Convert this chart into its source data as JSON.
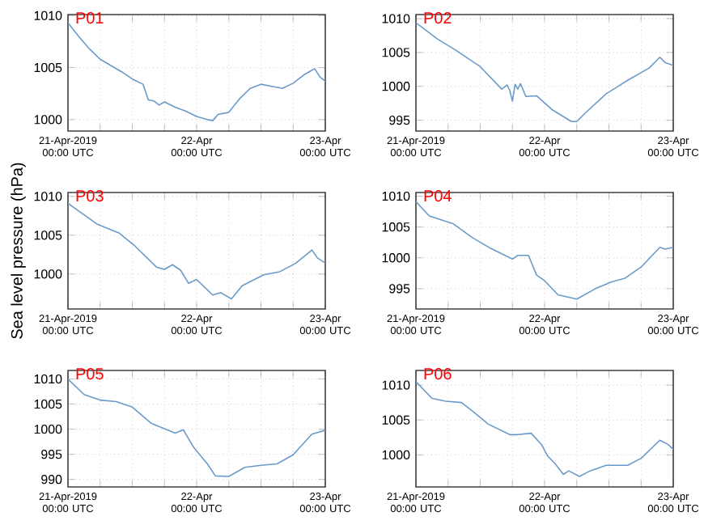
{
  "chart_data": [
    {
      "type": "line",
      "title": "P01",
      "color": "#6a9ac8",
      "grid": true,
      "xlim": [
        "2019-04-21T00:00",
        "2019-04-23T00:00"
      ],
      "ylim": [
        998.9,
        1010.1
      ],
      "yticks": [
        1000,
        1005,
        1010
      ],
      "xticks": [
        {
          "value": "2019-04-21T00:00",
          "label": "21-Apr-2019 00:00 UTC"
        },
        {
          "value": "2019-04-21T06:00",
          "label": null
        },
        {
          "value": "2019-04-21T12:00",
          "label": null
        },
        {
          "value": "2019-04-21T18:00",
          "label": null
        },
        {
          "value": "2019-04-22T00:00",
          "label": "22-Apr 00:00 UTC"
        },
        {
          "value": "2019-04-22T06:00",
          "label": null
        },
        {
          "value": "2019-04-22T12:00",
          "label": null
        },
        {
          "value": "2019-04-22T18:00",
          "label": null
        },
        {
          "value": "2019-04-23T00:00",
          "label": "23-Apr 00:00 UTC"
        }
      ],
      "x": [
        "2019-04-21T00:00",
        "2019-04-21T02:00",
        "2019-04-21T04:00",
        "2019-04-21T06:00",
        "2019-04-21T08:00",
        "2019-04-21T10:00",
        "2019-04-21T12:00",
        "2019-04-21T14:00",
        "2019-04-21T15:00",
        "2019-04-21T16:00",
        "2019-04-21T17:00",
        "2019-04-21T18:00",
        "2019-04-21T20:00",
        "2019-04-21T22:00",
        "2019-04-22T00:00",
        "2019-04-22T02:00",
        "2019-04-22T03:00",
        "2019-04-22T04:00",
        "2019-04-22T06:00",
        "2019-04-22T08:00",
        "2019-04-22T10:00",
        "2019-04-22T12:00",
        "2019-04-22T14:00",
        "2019-04-22T16:00",
        "2019-04-22T18:00",
        "2019-04-22T20:00",
        "2019-04-22T21:00",
        "2019-04-22T22:00",
        "2019-04-22T23:00",
        "2019-04-23T00:00"
      ],
      "values": [
        1009.3,
        1008.0,
        1006.8,
        1005.8,
        1005.2,
        1004.6,
        1003.9,
        1003.4,
        1001.9,
        1001.8,
        1001.4,
        1001.7,
        1001.2,
        1000.8,
        1000.3,
        1000.0,
        999.9,
        1000.5,
        1000.7,
        1002.0,
        1003.0,
        1003.4,
        1003.2,
        1003.0,
        1003.5,
        1004.3,
        1004.6,
        1004.9,
        1004.1,
        1003.7
      ]
    },
    {
      "type": "line",
      "title": "P02",
      "color": "#6a9ac8",
      "grid": true,
      "xlim": [
        "2019-04-21T00:00",
        "2019-04-23T00:00"
      ],
      "ylim": [
        993.4,
        1010.6
      ],
      "yticks": [
        995,
        1000,
        1005,
        1010
      ],
      "xticks": [
        {
          "value": "2019-04-21T00:00",
          "label": "21-Apr-2019 00:00 UTC"
        },
        {
          "value": "2019-04-21T06:00",
          "label": null
        },
        {
          "value": "2019-04-21T12:00",
          "label": null
        },
        {
          "value": "2019-04-21T18:00",
          "label": null
        },
        {
          "value": "2019-04-22T00:00",
          "label": "22-Apr 00:00 UTC"
        },
        {
          "value": "2019-04-22T06:00",
          "label": null
        },
        {
          "value": "2019-04-22T12:00",
          "label": null
        },
        {
          "value": "2019-04-22T18:00",
          "label": null
        },
        {
          "value": "2019-04-23T00:00",
          "label": "23-Apr 00:00 UTC"
        }
      ],
      "x": [
        "2019-04-21T00:00",
        "2019-04-21T04:00",
        "2019-04-21T07:30",
        "2019-04-21T12:00",
        "2019-04-21T16:00",
        "2019-04-21T17:00",
        "2019-04-21T17:30",
        "2019-04-21T18:00",
        "2019-04-21T18:30",
        "2019-04-21T19:00",
        "2019-04-21T19:30",
        "2019-04-21T20:30",
        "2019-04-21T22:30",
        "2019-04-22T01:30",
        "2019-04-22T05:00",
        "2019-04-22T06:00",
        "2019-04-22T07:30",
        "2019-04-22T11:30",
        "2019-04-22T15:30",
        "2019-04-22T19:30",
        "2019-04-22T21:30",
        "2019-04-22T22:30",
        "2019-04-23T00:00"
      ],
      "values": [
        1009.4,
        1007.0,
        1005.3,
        1002.9,
        999.6,
        1000.2,
        999.4,
        997.8,
        1000.3,
        999.6,
        1000.4,
        998.5,
        998.6,
        996.5,
        994.8,
        994.8,
        996.0,
        998.9,
        1000.9,
        1002.7,
        1004.3,
        1003.5,
        1003.1
      ]
    },
    {
      "type": "line",
      "title": "P03",
      "ylabel": "Sea level pressure (hPa)",
      "color": "#6a9ac8",
      "grid": true,
      "xlim": [
        "2019-04-21T00:00",
        "2019-04-23T00:00"
      ],
      "ylim": [
        995.5,
        1010.5
      ],
      "yticks": [
        1000,
        1005,
        1010
      ],
      "xticks": [
        {
          "value": "2019-04-21T00:00",
          "label": "21-Apr-2019 00:00 UTC"
        },
        {
          "value": "2019-04-21T06:00",
          "label": null
        },
        {
          "value": "2019-04-21T12:00",
          "label": null
        },
        {
          "value": "2019-04-21T18:00",
          "label": null
        },
        {
          "value": "2019-04-22T00:00",
          "label": "22-Apr 00:00 UTC"
        },
        {
          "value": "2019-04-22T06:00",
          "label": null
        },
        {
          "value": "2019-04-22T12:00",
          "label": null
        },
        {
          "value": "2019-04-22T18:00",
          "label": null
        },
        {
          "value": "2019-04-23T00:00",
          "label": "23-Apr 00:00 UTC"
        }
      ],
      "x": [
        "2019-04-21T00:00",
        "2019-04-21T05:30",
        "2019-04-21T09:30",
        "2019-04-21T12:30",
        "2019-04-21T16:30",
        "2019-04-21T18:00",
        "2019-04-21T19:30",
        "2019-04-21T21:00",
        "2019-04-21T22:30",
        "2019-04-22T00:00",
        "2019-04-22T03:00",
        "2019-04-22T04:30",
        "2019-04-22T06:30",
        "2019-04-22T08:30",
        "2019-04-22T12:30",
        "2019-04-22T15:30",
        "2019-04-22T18:30",
        "2019-04-22T21:30",
        "2019-04-22T22:30",
        "2019-04-23T00:00"
      ],
      "values": [
        1009.1,
        1006.4,
        1005.3,
        1003.6,
        1000.9,
        1000.6,
        1001.2,
        1000.5,
        998.8,
        999.3,
        997.3,
        997.6,
        996.8,
        998.5,
        999.9,
        1000.3,
        1001.4,
        1003.1,
        1002.1,
        1001.4
      ]
    },
    {
      "type": "line",
      "title": "P04",
      "color": "#6a9ac8",
      "grid": true,
      "xlim": [
        "2019-04-21T00:00",
        "2019-04-23T00:00"
      ],
      "ylim": [
        991.7,
        1010.6
      ],
      "yticks": [
        995,
        1000,
        1005,
        1010
      ],
      "xticks": [
        {
          "value": "2019-04-21T00:00",
          "label": "21-Apr-2019 00:00 UTC"
        },
        {
          "value": "2019-04-21T06:00",
          "label": null
        },
        {
          "value": "2019-04-21T12:00",
          "label": null
        },
        {
          "value": "2019-04-21T18:00",
          "label": null
        },
        {
          "value": "2019-04-22T00:00",
          "label": "22-Apr 00:00 UTC"
        },
        {
          "value": "2019-04-22T06:00",
          "label": null
        },
        {
          "value": "2019-04-22T12:00",
          "label": null
        },
        {
          "value": "2019-04-22T18:00",
          "label": null
        },
        {
          "value": "2019-04-23T00:00",
          "label": "23-Apr 00:00 UTC"
        }
      ],
      "x": [
        "2019-04-21T00:00",
        "2019-04-21T02:30",
        "2019-04-21T07:00",
        "2019-04-21T10:30",
        "2019-04-21T14:00",
        "2019-04-21T18:00",
        "2019-04-21T19:00",
        "2019-04-21T21:00",
        "2019-04-21T22:30",
        "2019-04-22T00:00",
        "2019-04-22T02:30",
        "2019-04-22T06:00",
        "2019-04-22T09:30",
        "2019-04-22T12:30",
        "2019-04-22T15:00",
        "2019-04-22T18:00",
        "2019-04-22T21:30",
        "2019-04-22T22:30",
        "2019-04-23T00:00"
      ],
      "values": [
        1009.1,
        1006.8,
        1005.5,
        1003.3,
        1001.5,
        999.8,
        1000.4,
        1000.4,
        997.2,
        996.3,
        994.0,
        993.3,
        995.0,
        996.1,
        996.7,
        998.5,
        1001.7,
        1001.4,
        1001.7
      ]
    },
    {
      "type": "line",
      "title": "P05",
      "color": "#6a9ac8",
      "grid": true,
      "xlim": [
        "2019-04-21T00:00",
        "2019-04-23T00:00"
      ],
      "ylim": [
        988.5,
        1011.7
      ],
      "yticks": [
        990,
        995,
        1000,
        1005,
        1010
      ],
      "xticks": [
        {
          "value": "2019-04-21T00:00",
          "label": "21-Apr-2019 00:00 UTC"
        },
        {
          "value": "2019-04-21T06:00",
          "label": null
        },
        {
          "value": "2019-04-21T12:00",
          "label": null
        },
        {
          "value": "2019-04-21T18:00",
          "label": null
        },
        {
          "value": "2019-04-22T00:00",
          "label": "22-Apr 00:00 UTC"
        },
        {
          "value": "2019-04-22T06:00",
          "label": null
        },
        {
          "value": "2019-04-22T12:00",
          "label": null
        },
        {
          "value": "2019-04-22T18:00",
          "label": null
        },
        {
          "value": "2019-04-23T00:00",
          "label": "23-Apr 00:00 UTC"
        }
      ],
      "x": [
        "2019-04-21T00:00",
        "2019-04-21T03:00",
        "2019-04-21T06:00",
        "2019-04-21T09:00",
        "2019-04-21T12:00",
        "2019-04-21T15:30",
        "2019-04-21T20:00",
        "2019-04-21T21:30",
        "2019-04-21T23:30",
        "2019-04-22T02:00",
        "2019-04-22T03:30",
        "2019-04-22T06:00",
        "2019-04-22T09:00",
        "2019-04-22T12:00",
        "2019-04-22T15:00",
        "2019-04-22T18:00",
        "2019-04-22T21:30",
        "2019-04-23T00:00"
      ],
      "values": [
        1010.0,
        1006.9,
        1005.8,
        1005.5,
        1004.4,
        1001.2,
        999.2,
        999.9,
        996.3,
        993.1,
        990.7,
        990.6,
        992.4,
        992.8,
        993.1,
        994.9,
        999.0,
        999.8
      ]
    },
    {
      "type": "line",
      "title": "P06",
      "color": "#6a9ac8",
      "grid": true,
      "xlim": [
        "2019-04-21T00:00",
        "2019-04-23T00:00"
      ],
      "ylim": [
        995.4,
        1012.1
      ],
      "yticks": [
        1000,
        1005,
        1010
      ],
      "xticks": [
        {
          "value": "2019-04-21T00:00",
          "label": "21-Apr-2019 00:00 UTC"
        },
        {
          "value": "2019-04-21T06:00",
          "label": null
        },
        {
          "value": "2019-04-21T12:00",
          "label": null
        },
        {
          "value": "2019-04-21T18:00",
          "label": null
        },
        {
          "value": "2019-04-22T00:00",
          "label": "22-Apr 00:00 UTC"
        },
        {
          "value": "2019-04-22T06:00",
          "label": null
        },
        {
          "value": "2019-04-22T12:00",
          "label": null
        },
        {
          "value": "2019-04-22T18:00",
          "label": null
        },
        {
          "value": "2019-04-23T00:00",
          "label": "23-Apr 00:00 UTC"
        }
      ],
      "x": [
        "2019-04-21T00:00",
        "2019-04-21T03:00",
        "2019-04-21T05:30",
        "2019-04-21T08:30",
        "2019-04-21T11:00",
        "2019-04-21T13:30",
        "2019-04-21T17:30",
        "2019-04-21T19:00",
        "2019-04-21T21:30",
        "2019-04-21T23:30",
        "2019-04-22T00:30",
        "2019-04-22T02:00",
        "2019-04-22T03:30",
        "2019-04-22T04:30",
        "2019-04-22T06:30",
        "2019-04-22T08:30",
        "2019-04-22T11:30",
        "2019-04-22T15:30",
        "2019-04-22T18:00",
        "2019-04-22T21:30",
        "2019-04-22T23:00",
        "2019-04-23T00:00"
      ],
      "values": [
        1010.5,
        1008.1,
        1007.7,
        1007.5,
        1006.0,
        1004.4,
        1002.9,
        1002.9,
        1003.1,
        1001.4,
        999.9,
        998.7,
        997.2,
        997.7,
        996.9,
        997.7,
        998.5,
        998.5,
        999.5,
        1002.1,
        1001.5,
        1000.8
      ]
    }
  ]
}
